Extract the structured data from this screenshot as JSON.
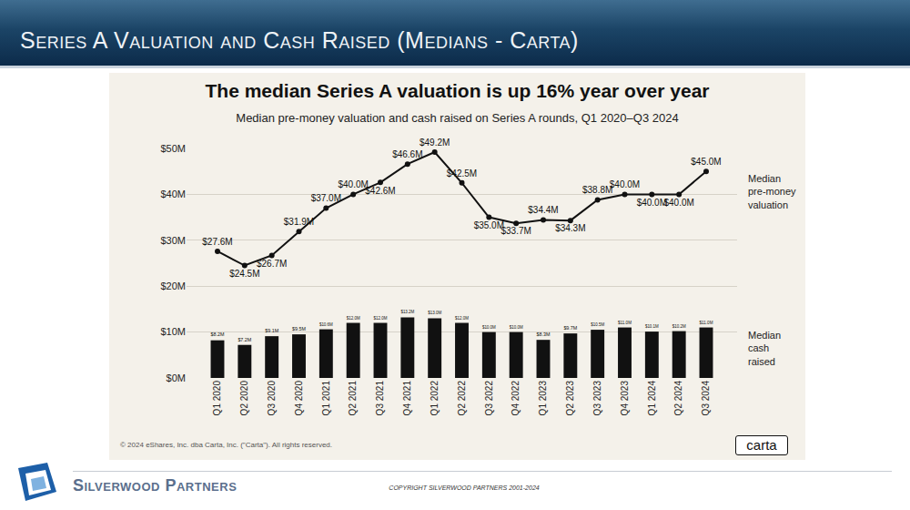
{
  "header": {
    "title": "Series A Valuation and Cash Raised (Medians - Carta)"
  },
  "chart_data": {
    "type": "bar",
    "title": "The median Series A valuation is up 16% year over year",
    "subtitle": "Median pre-money valuation and cash raised on Series A rounds, Q1 2020–Q3 2024",
    "categories": [
      "Q1 2020",
      "Q2 2020",
      "Q3 2020",
      "Q4 2020",
      "Q1 2021",
      "Q2 2021",
      "Q3 2021",
      "Q4 2021",
      "Q1 2022",
      "Q2 2022",
      "Q3 2022",
      "Q4 2022",
      "Q1 2023",
      "Q2 2023",
      "Q3 2023",
      "Q4 2023",
      "Q1 2024",
      "Q2 2024",
      "Q3 2024"
    ],
    "series": [
      {
        "name": "Median cash raised",
        "type": "bar",
        "color": "#111111",
        "values": [
          8.2,
          7.2,
          9.1,
          9.5,
          10.6,
          12.0,
          12.0,
          13.2,
          13.0,
          12.0,
          10.0,
          10.0,
          8.3,
          9.7,
          10.5,
          11.0,
          10.1,
          10.2,
          11.0
        ],
        "value_labels": [
          "$8.2M",
          "$7.2M",
          "$9.1M",
          "$9.5M",
          "$10.6M",
          "$12.0M",
          "$12.0M",
          "$13.2M",
          "$13.0M",
          "$12.0M",
          "$10.0M",
          "$10.0M",
          "$8.3M",
          "$9.7M",
          "$10.5M",
          "$11.0M",
          "$10.1M",
          "$10.2M",
          "$11.0M"
        ]
      },
      {
        "name": "Median pre-money valuation",
        "type": "line",
        "color": "#111111",
        "marker": "circle",
        "line_style": "solid",
        "values": [
          27.6,
          24.5,
          26.7,
          31.9,
          37.0,
          40.0,
          42.6,
          46.6,
          49.2,
          42.5,
          35.0,
          33.7,
          34.4,
          34.3,
          38.8,
          40.0,
          40.0,
          40.0,
          45.0
        ],
        "value_labels": [
          "$27.6M",
          "$24.5M",
          "$26.7M",
          "$31.9M",
          "$37.0M",
          "$40.0M",
          "$42.6M",
          "$46.6M",
          "$49.2M",
          "$42.5M",
          "$35.0M",
          "$33.7M",
          "$34.4M",
          "$34.3M",
          "$38.8M",
          "$40.0M",
          "$40.0M",
          "$40.0M",
          "$45.0M"
        ]
      }
    ],
    "ylim": [
      0,
      50
    ],
    "yticks": [
      {
        "value": 0,
        "label": "$0M"
      },
      {
        "value": 10,
        "label": "$10M"
      },
      {
        "value": 20,
        "label": "$20M"
      },
      {
        "value": 30,
        "label": "$30M"
      },
      {
        "value": 40,
        "label": "$40M"
      },
      {
        "value": 50,
        "label": "$50M"
      }
    ],
    "grid": true,
    "data_labels": true
  },
  "source": "© 2024 eShares, Inc. dba Carta, Inc. (\"Carta\"). All rights reserved.",
  "logo": "carta",
  "footer": {
    "company": "Silverwood Partners",
    "copyright": "COPYRIGHT SILVERWOOD PARTNERS 2001-2024"
  }
}
